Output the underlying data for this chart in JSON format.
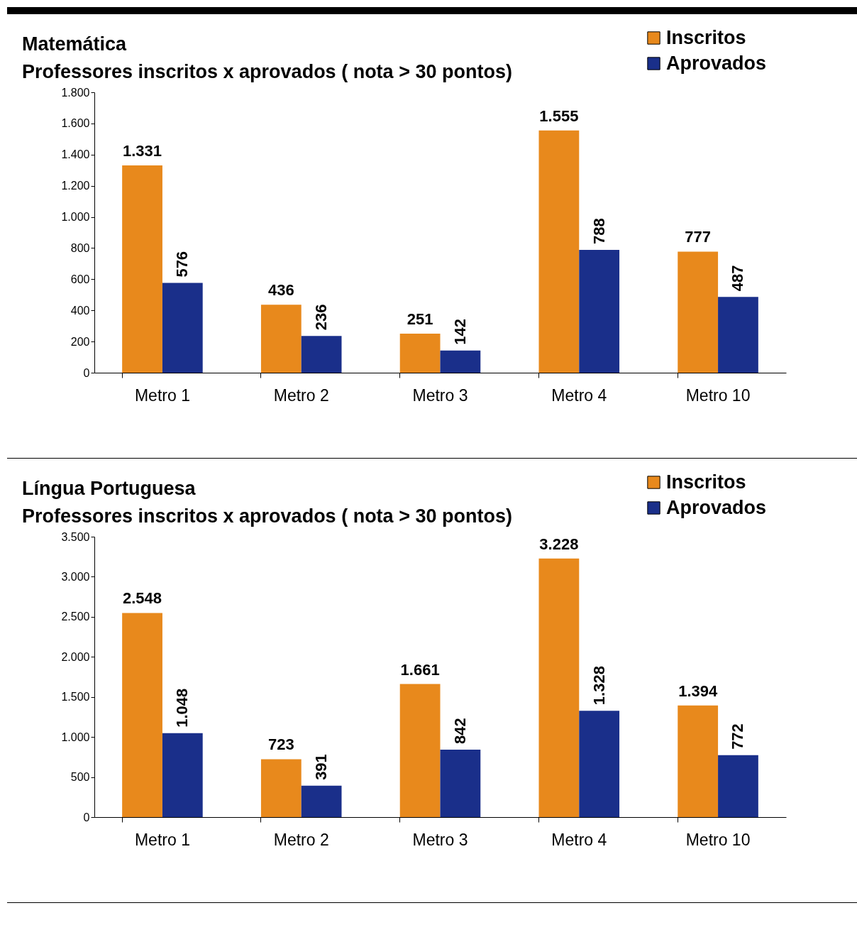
{
  "chart_data": [
    {
      "type": "bar",
      "title": "Matemática",
      "subtitle": "Professores inscritos x aprovados ( nota > 30 pontos)",
      "categories": [
        "Metro 1",
        "Metro 2",
        "Metro 3",
        "Metro 4",
        "Metro 10"
      ],
      "series": [
        {
          "name": "Inscritos",
          "color": "#e8891c",
          "values": [
            1331,
            436,
            251,
            1555,
            777
          ],
          "value_labels": [
            "1.331",
            "436",
            "251",
            "1.555",
            "777"
          ]
        },
        {
          "name": "Aprovados",
          "color": "#1a2f8a",
          "values": [
            576,
            236,
            142,
            788,
            487
          ],
          "value_labels": [
            "576",
            "236",
            "142",
            "788",
            "487"
          ]
        }
      ],
      "ylim": [
        0,
        1800
      ],
      "yticks": [
        0,
        {
          "value": 200,
          "label": "200"
        },
        {
          "value": 400,
          "label": "400"
        },
        {
          "value": 600,
          "label": "600"
        },
        {
          "value": 800,
          "label": "800"
        },
        {
          "value": 1000,
          "label": "1.000"
        },
        {
          "value": 1200,
          "label": "1.200"
        },
        {
          "value": 1400,
          "label": "1.400"
        },
        {
          "value": 1600,
          "label": "1.600"
        },
        {
          "value": 1800,
          "label": "1.800"
        }
      ],
      "grid": false,
      "legend": "top right"
    },
    {
      "type": "bar",
      "title": "Língua Portuguesa",
      "subtitle": "Professores inscritos x aprovados ( nota > 30 pontos)",
      "categories": [
        "Metro 1",
        "Metro 2",
        "Metro 3",
        "Metro 4",
        "Metro 10"
      ],
      "series": [
        {
          "name": "Inscritos",
          "color": "#e8891c",
          "values": [
            2548,
            723,
            1661,
            3228,
            1394
          ],
          "value_labels": [
            "2.548",
            "723",
            "1.661",
            "3.228",
            "1.394"
          ]
        },
        {
          "name": "Aprovados",
          "color": "#1a2f8a",
          "values": [
            1048,
            391,
            842,
            1328,
            772
          ],
          "value_labels": [
            "1.048",
            "391",
            "842",
            "1.328",
            "772"
          ]
        }
      ],
      "ylim": [
        0,
        3500
      ],
      "yticks": [
        0,
        {
          "value": 500,
          "label": "500"
        },
        {
          "value": 1000,
          "label": "1.000"
        },
        {
          "value": 1500,
          "label": "1.500"
        },
        {
          "value": 2000,
          "label": "2.000"
        },
        {
          "value": 2500,
          "label": "2.500"
        },
        {
          "value": 3000,
          "label": "3.000"
        },
        {
          "value": 3500,
          "label": "3.500"
        }
      ],
      "grid": false,
      "legend": "top right"
    }
  ]
}
